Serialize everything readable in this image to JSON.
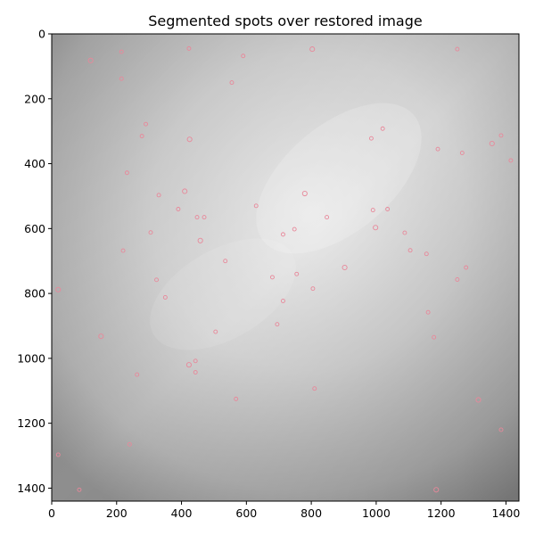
{
  "title": "Segmented spots over restored image",
  "image": {
    "width": 1440,
    "height": 1440,
    "description_colormap": "gray"
  },
  "axes": {
    "x_ticks": [
      0,
      200,
      400,
      600,
      800,
      1000,
      1200,
      1400
    ],
    "y_ticks": [
      0,
      200,
      400,
      600,
      800,
      1000,
      1200,
      1400
    ],
    "x_range": [
      0,
      1440
    ],
    "y_range": [
      0,
      1440
    ],
    "y_inverted": true
  },
  "colors": {
    "spot_outline": "#e8889a",
    "axis": "#000000",
    "image_light": "#e6e6e6",
    "image_dark": "#8a8a8a"
  },
  "chart_data": {
    "type": "scatter",
    "title": "Segmented spots over restored image",
    "xlim": [
      0,
      1440
    ],
    "ylim": [
      1440,
      0
    ],
    "points": [
      [
        120,
        82
      ],
      [
        215,
        55
      ],
      [
        215,
        138
      ],
      [
        423,
        45
      ],
      [
        590,
        68
      ],
      [
        803,
        47
      ],
      [
        1250,
        47
      ],
      [
        555,
        150
      ],
      [
        290,
        278
      ],
      [
        278,
        315
      ],
      [
        425,
        325
      ],
      [
        985,
        322
      ],
      [
        1020,
        292
      ],
      [
        1190,
        355
      ],
      [
        1265,
        367
      ],
      [
        1357,
        338
      ],
      [
        1385,
        313
      ],
      [
        1415,
        390
      ],
      [
        232,
        428
      ],
      [
        330,
        497
      ],
      [
        410,
        485
      ],
      [
        390,
        540
      ],
      [
        448,
        565
      ],
      [
        470,
        565
      ],
      [
        630,
        530
      ],
      [
        780,
        492
      ],
      [
        848,
        565
      ],
      [
        990,
        543
      ],
      [
        1035,
        540
      ],
      [
        305,
        612
      ],
      [
        458,
        637
      ],
      [
        220,
        668
      ],
      [
        535,
        700
      ],
      [
        713,
        618
      ],
      [
        748,
        602
      ],
      [
        998,
        597
      ],
      [
        1088,
        613
      ],
      [
        1105,
        667
      ],
      [
        1155,
        678
      ],
      [
        1277,
        720
      ],
      [
        903,
        720
      ],
      [
        323,
        758
      ],
      [
        680,
        750
      ],
      [
        755,
        740
      ],
      [
        1250,
        757
      ],
      [
        20,
        788
      ],
      [
        350,
        812
      ],
      [
        713,
        823
      ],
      [
        805,
        785
      ],
      [
        1160,
        858
      ],
      [
        152,
        932
      ],
      [
        505,
        918
      ],
      [
        695,
        895
      ],
      [
        1178,
        935
      ],
      [
        263,
        1050
      ],
      [
        423,
        1020
      ],
      [
        443,
        1008
      ],
      [
        443,
        1043
      ],
      [
        568,
        1125
      ],
      [
        810,
        1093
      ],
      [
        1315,
        1128
      ],
      [
        1385,
        1220
      ],
      [
        240,
        1265
      ],
      [
        20,
        1297
      ],
      [
        85,
        1405
      ],
      [
        1185,
        1405
      ]
    ]
  }
}
